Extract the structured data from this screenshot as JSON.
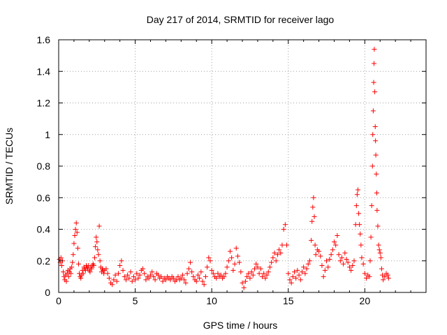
{
  "chart_data": {
    "type": "scatter",
    "title": "Day 217 of 2014, SRMTID for receiver lago",
    "xlabel": "GPS time / hours",
    "ylabel": "SRMTID / TECUs",
    "xlim": [
      0,
      24
    ],
    "ylim": [
      0,
      1.6
    ],
    "xticks": [
      0,
      5,
      10,
      15,
      20
    ],
    "yticks": [
      0,
      0.2,
      0.4,
      0.6,
      0.8,
      1,
      1.2,
      1.4,
      1.6
    ],
    "xtick_labels": [
      "0",
      "5",
      "10",
      "15",
      "20"
    ],
    "ytick_labels": [
      "0",
      "0.2",
      "0.4",
      "0.6",
      "0.8",
      "1",
      "1.2",
      "1.4",
      "1.6"
    ],
    "grid": true,
    "marker": "+",
    "color": "#ff0000",
    "series": [
      {
        "name": "SRMTID",
        "points": [
          [
            0.05,
            0.21
          ],
          [
            0.1,
            0.19
          ],
          [
            0.15,
            0.22
          ],
          [
            0.2,
            0.17
          ],
          [
            0.25,
            0.2
          ],
          [
            0.3,
            0.13
          ],
          [
            0.35,
            0.1
          ],
          [
            0.4,
            0.08
          ],
          [
            0.45,
            0.11
          ],
          [
            0.5,
            0.07
          ],
          [
            0.55,
            0.12
          ],
          [
            0.6,
            0.14
          ],
          [
            0.65,
            0.1
          ],
          [
            0.7,
            0.13
          ],
          [
            0.75,
            0.15
          ],
          [
            0.8,
            0.12
          ],
          [
            0.85,
            0.16
          ],
          [
            0.9,
            0.19
          ],
          [
            0.95,
            0.24
          ],
          [
            1.0,
            0.31
          ],
          [
            1.05,
            0.36
          ],
          [
            1.1,
            0.4
          ],
          [
            1.15,
            0.44
          ],
          [
            1.2,
            0.38
          ],
          [
            1.25,
            0.28
          ],
          [
            1.3,
            0.18
          ],
          [
            1.35,
            0.12
          ],
          [
            1.4,
            0.1
          ],
          [
            1.45,
            0.09
          ],
          [
            1.5,
            0.11
          ],
          [
            1.55,
            0.14
          ],
          [
            1.6,
            0.12
          ],
          [
            1.65,
            0.16
          ],
          [
            1.7,
            0.15
          ],
          [
            1.75,
            0.14
          ],
          [
            1.8,
            0.17
          ],
          [
            1.85,
            0.16
          ],
          [
            1.9,
            0.15
          ],
          [
            1.95,
            0.17
          ],
          [
            2.0,
            0.14
          ],
          [
            2.05,
            0.13
          ],
          [
            2.1,
            0.16
          ],
          [
            2.15,
            0.15
          ],
          [
            2.2,
            0.17
          ],
          [
            2.25,
            0.18
          ],
          [
            2.3,
            0.17
          ],
          [
            2.35,
            0.22
          ],
          [
            2.4,
            0.29
          ],
          [
            2.45,
            0.35
          ],
          [
            2.5,
            0.32
          ],
          [
            2.55,
            0.27
          ],
          [
            2.6,
            0.24
          ],
          [
            2.65,
            0.42
          ],
          [
            2.7,
            0.2
          ],
          [
            2.75,
            0.16
          ],
          [
            2.8,
            0.13
          ],
          [
            2.85,
            0.15
          ],
          [
            2.9,
            0.14
          ],
          [
            2.95,
            0.12
          ],
          [
            3.0,
            0.14
          ],
          [
            3.1,
            0.15
          ],
          [
            3.2,
            0.12
          ],
          [
            3.3,
            0.09
          ],
          [
            3.4,
            0.06
          ],
          [
            3.5,
            0.05
          ],
          [
            3.6,
            0.08
          ],
          [
            3.7,
            0.11
          ],
          [
            3.8,
            0.07
          ],
          [
            3.9,
            0.12
          ],
          [
            4.0,
            0.17
          ],
          [
            4.1,
            0.2
          ],
          [
            4.2,
            0.14
          ],
          [
            4.3,
            0.1
          ],
          [
            4.4,
            0.08
          ],
          [
            4.5,
            0.11
          ],
          [
            4.6,
            0.09
          ],
          [
            4.7,
            0.13
          ],
          [
            4.8,
            0.07
          ],
          [
            4.9,
            0.1
          ],
          [
            5.0,
            0.08
          ],
          [
            5.1,
            0.12
          ],
          [
            5.2,
            0.09
          ],
          [
            5.3,
            0.11
          ],
          [
            5.4,
            0.14
          ],
          [
            5.5,
            0.15
          ],
          [
            5.6,
            0.12
          ],
          [
            5.7,
            0.08
          ],
          [
            5.8,
            0.1
          ],
          [
            5.9,
            0.09
          ],
          [
            6.0,
            0.11
          ],
          [
            6.1,
            0.13
          ],
          [
            6.2,
            0.1
          ],
          [
            6.3,
            0.08
          ],
          [
            6.4,
            0.12
          ],
          [
            6.5,
            0.11
          ],
          [
            6.6,
            0.09
          ],
          [
            6.7,
            0.1
          ],
          [
            6.8,
            0.07
          ],
          [
            6.9,
            0.09
          ],
          [
            7.0,
            0.08
          ],
          [
            7.1,
            0.1
          ],
          [
            7.2,
            0.09
          ],
          [
            7.3,
            0.08
          ],
          [
            7.4,
            0.1
          ],
          [
            7.5,
            0.09
          ],
          [
            7.6,
            0.07
          ],
          [
            7.7,
            0.08
          ],
          [
            7.8,
            0.1
          ],
          [
            7.9,
            0.08
          ],
          [
            8.0,
            0.09
          ],
          [
            8.1,
            0.11
          ],
          [
            8.2,
            0.08
          ],
          [
            8.3,
            0.06
          ],
          [
            8.4,
            0.12
          ],
          [
            8.5,
            0.15
          ],
          [
            8.6,
            0.19
          ],
          [
            8.7,
            0.13
          ],
          [
            8.8,
            0.1
          ],
          [
            8.9,
            0.08
          ],
          [
            9.0,
            0.07
          ],
          [
            9.1,
            0.11
          ],
          [
            9.2,
            0.09
          ],
          [
            9.3,
            0.13
          ],
          [
            9.4,
            0.07
          ],
          [
            9.5,
            0.05
          ],
          [
            9.6,
            0.1
          ],
          [
            9.7,
            0.16
          ],
          [
            9.8,
            0.22
          ],
          [
            9.9,
            0.2
          ],
          [
            10.0,
            0.14
          ],
          [
            10.1,
            0.12
          ],
          [
            10.2,
            0.1
          ],
          [
            10.3,
            0.09
          ],
          [
            10.4,
            0.12
          ],
          [
            10.5,
            0.1
          ],
          [
            10.6,
            0.11
          ],
          [
            10.7,
            0.09
          ],
          [
            10.8,
            0.1
          ],
          [
            10.9,
            0.12
          ],
          [
            11.0,
            0.16
          ],
          [
            11.1,
            0.2
          ],
          [
            11.2,
            0.26
          ],
          [
            11.3,
            0.22
          ],
          [
            11.4,
            0.14
          ],
          [
            11.5,
            0.18
          ],
          [
            11.6,
            0.28
          ],
          [
            11.7,
            0.23
          ],
          [
            11.8,
            0.19
          ],
          [
            11.9,
            0.13
          ],
          [
            12.0,
            0.06
          ],
          [
            12.1,
            0.03
          ],
          [
            12.2,
            0.07
          ],
          [
            12.3,
            0.1
          ],
          [
            12.4,
            0.12
          ],
          [
            12.5,
            0.09
          ],
          [
            12.6,
            0.13
          ],
          [
            12.7,
            0.11
          ],
          [
            12.8,
            0.15
          ],
          [
            12.9,
            0.18
          ],
          [
            13.0,
            0.16
          ],
          [
            13.1,
            0.12
          ],
          [
            13.2,
            0.15
          ],
          [
            13.3,
            0.1
          ],
          [
            13.4,
            0.12
          ],
          [
            13.5,
            0.09
          ],
          [
            13.6,
            0.11
          ],
          [
            13.7,
            0.13
          ],
          [
            13.8,
            0.16
          ],
          [
            13.9,
            0.19
          ],
          [
            14.0,
            0.22
          ],
          [
            14.1,
            0.25
          ],
          [
            14.2,
            0.2
          ],
          [
            14.3,
            0.24
          ],
          [
            14.4,
            0.27
          ],
          [
            14.5,
            0.25
          ],
          [
            14.6,
            0.3
          ],
          [
            14.7,
            0.4
          ],
          [
            14.8,
            0.43
          ],
          [
            14.9,
            0.3
          ],
          [
            15.0,
            0.12
          ],
          [
            15.1,
            0.08
          ],
          [
            15.2,
            0.06
          ],
          [
            15.3,
            0.1
          ],
          [
            15.4,
            0.13
          ],
          [
            15.5,
            0.09
          ],
          [
            15.6,
            0.14
          ],
          [
            15.7,
            0.11
          ],
          [
            15.8,
            0.08
          ],
          [
            15.9,
            0.13
          ],
          [
            16.0,
            0.16
          ],
          [
            16.1,
            0.12
          ],
          [
            16.2,
            0.15
          ],
          [
            16.3,
            0.18
          ],
          [
            16.4,
            0.2
          ],
          [
            16.5,
            0.33
          ],
          [
            16.55,
            0.45
          ],
          [
            16.6,
            0.54
          ],
          [
            16.65,
            0.6
          ],
          [
            16.7,
            0.48
          ],
          [
            16.75,
            0.3
          ],
          [
            16.8,
            0.24
          ],
          [
            16.9,
            0.27
          ],
          [
            17.0,
            0.26
          ],
          [
            17.1,
            0.23
          ],
          [
            17.2,
            0.17
          ],
          [
            17.3,
            0.1
          ],
          [
            17.4,
            0.14
          ],
          [
            17.5,
            0.2
          ],
          [
            17.6,
            0.16
          ],
          [
            17.7,
            0.21
          ],
          [
            17.8,
            0.24
          ],
          [
            17.9,
            0.27
          ],
          [
            18.0,
            0.32
          ],
          [
            18.1,
            0.3
          ],
          [
            18.2,
            0.36
          ],
          [
            18.3,
            0.24
          ],
          [
            18.4,
            0.2
          ],
          [
            18.5,
            0.22
          ],
          [
            18.6,
            0.18
          ],
          [
            18.7,
            0.25
          ],
          [
            18.8,
            0.21
          ],
          [
            18.9,
            0.19
          ],
          [
            19.0,
            0.16
          ],
          [
            19.1,
            0.14
          ],
          [
            19.2,
            0.17
          ],
          [
            19.3,
            0.2
          ],
          [
            19.4,
            0.43
          ],
          [
            19.45,
            0.55
          ],
          [
            19.5,
            0.62
          ],
          [
            19.55,
            0.65
          ],
          [
            19.6,
            0.5
          ],
          [
            19.65,
            0.43
          ],
          [
            19.7,
            0.37
          ],
          [
            19.75,
            0.3
          ],
          [
            19.8,
            0.22
          ],
          [
            19.9,
            0.18
          ],
          [
            20.0,
            0.12
          ],
          [
            20.1,
            0.09
          ],
          [
            20.2,
            0.11
          ],
          [
            20.3,
            0.1
          ],
          [
            20.35,
            0.2
          ],
          [
            20.4,
            0.35
          ],
          [
            20.45,
            0.55
          ],
          [
            20.5,
            0.8
          ],
          [
            20.52,
            1.0
          ],
          [
            20.55,
            1.15
          ],
          [
            20.58,
            1.33
          ],
          [
            20.6,
            1.45
          ],
          [
            20.62,
            1.54
          ],
          [
            20.65,
            1.27
          ],
          [
            20.68,
            1.05
          ],
          [
            20.7,
            0.96
          ],
          [
            20.72,
            0.87
          ],
          [
            20.75,
            0.75
          ],
          [
            20.78,
            0.63
          ],
          [
            20.8,
            0.52
          ],
          [
            20.85,
            0.42
          ],
          [
            20.9,
            0.3
          ],
          [
            20.95,
            0.27
          ],
          [
            21.0,
            0.25
          ],
          [
            21.05,
            0.22
          ],
          [
            21.1,
            0.15
          ],
          [
            21.15,
            0.11
          ],
          [
            21.2,
            0.08
          ],
          [
            21.3,
            0.1
          ],
          [
            21.4,
            0.12
          ],
          [
            21.5,
            0.11
          ],
          [
            21.55,
            0.09
          ]
        ]
      }
    ]
  }
}
